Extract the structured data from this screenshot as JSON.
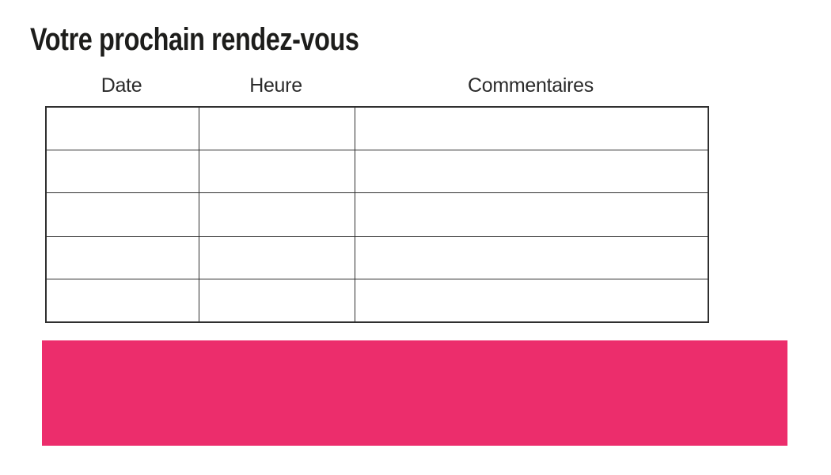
{
  "page": {
    "title": "Votre prochain rendez-vous"
  },
  "appointments_table": {
    "headers": [
      "Date",
      "Heure",
      "Commentaires"
    ],
    "rows": [
      [
        "",
        "",
        ""
      ],
      [
        "",
        "",
        ""
      ],
      [
        "",
        "",
        ""
      ],
      [
        "",
        "",
        ""
      ],
      [
        "",
        "",
        ""
      ]
    ]
  },
  "banner": {
    "color": "#ec2d6c"
  },
  "colors": {
    "title_text": "#1d1d1b",
    "header_text": "#2b2b2b",
    "table_border": "#2f2f2f",
    "background": "#ffffff"
  }
}
